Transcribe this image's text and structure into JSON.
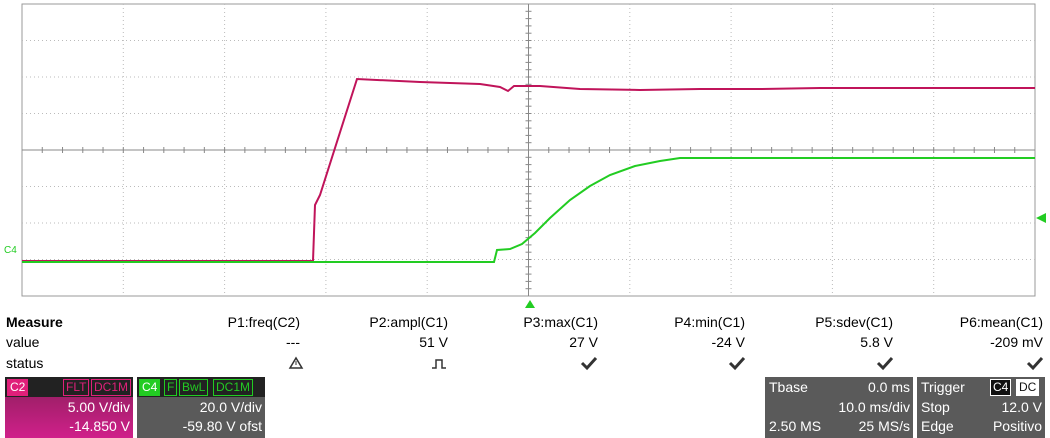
{
  "marker": "C4",
  "measure": {
    "title": "Measure",
    "params": [
      "P1:freq(C2)",
      "P2:ampl(C1)",
      "P3:max(C1)",
      "P4:min(C1)",
      "P5:sdev(C1)",
      "P6:mean(C1)"
    ],
    "value_label": "value",
    "values": [
      "---",
      "51 V",
      "27 V",
      "-24 V",
      "5.8 V",
      "-209 mV"
    ],
    "status_label": "status"
  },
  "channels": [
    {
      "name": "C2",
      "tags": [
        "FLT",
        "DC1M"
      ],
      "scale": "5.00 V/div",
      "offset": "-14.850 V"
    },
    {
      "name": "C4",
      "tags": [
        "F",
        "BwL",
        "DC1M"
      ],
      "scale": "20.0 V/div",
      "offset": "-59.80 V ofst"
    }
  ],
  "timebase": {
    "title": "Tbase",
    "delay": "0.0 ms",
    "scale": "10.0 ms/div",
    "samples": "2.50 MS",
    "rate": "25 MS/s"
  },
  "trigger": {
    "title": "Trigger",
    "tags": [
      "C4",
      "DC"
    ],
    "mode": "Stop",
    "level": "12.0 V",
    "type": "Edge",
    "slope": "Positivo"
  }
}
